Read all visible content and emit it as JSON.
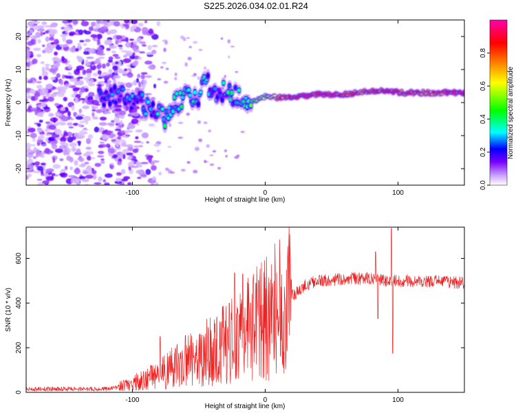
{
  "chart_data": [
    {
      "type": "heatmap",
      "title": "S225.2026.034.02.01.R24",
      "xlabel": "Height of straight line (km)",
      "ylabel": "Frequency (Hz)",
      "xlim": [
        -180,
        150
      ],
      "ylim": [
        -25,
        25
      ],
      "xticks": [
        -100,
        0,
        100
      ],
      "xtick_labels": [
        "-100",
        "0",
        "100"
      ],
      "yticks": [
        -20,
        -10,
        0,
        10,
        20
      ],
      "ytick_labels": [
        "-20",
        "-10",
        "0",
        "10",
        "20"
      ],
      "colorbar": {
        "label": "Normalized spectral amplitude",
        "range": [
          0,
          1
        ],
        "ticks": [
          0.0,
          0.2,
          0.4,
          0.6,
          0.8
        ],
        "tick_labels": [
          "0.0",
          "0.2",
          "0.4",
          "0.6",
          "0.8"
        ],
        "colors": [
          "#ffffff",
          "#c9a0ff",
          "#7a00ff",
          "#0000ff",
          "#00ffff",
          "#00ff00",
          "#ffff00",
          "#ff8000",
          "#ff0000",
          "#ff00aa"
        ]
      },
      "ridge": {
        "x": [
          -120,
          -100,
          -90,
          -80,
          -75,
          -70,
          -60,
          -50,
          -45,
          -40,
          -30,
          -20,
          -10,
          0,
          10,
          20,
          40,
          60,
          80,
          90,
          100,
          120,
          150
        ],
        "freq": [
          2,
          1,
          -1,
          -3,
          -5,
          0,
          2,
          1,
          7,
          4,
          3,
          1.5,
          0,
          2,
          1.5,
          1.5,
          2.5,
          2.5,
          3.5,
          3.5,
          3,
          3,
          3
        ],
        "amplitude": [
          0.25,
          0.3,
          0.35,
          0.35,
          0.4,
          0.35,
          0.4,
          0.35,
          0.35,
          0.3,
          0.35,
          0.45,
          0.5,
          0.55,
          0.75,
          0.85,
          0.9,
          0.85,
          0.8,
          0.9,
          0.85,
          0.8,
          0.9
        ]
      }
    },
    {
      "type": "line",
      "title": "",
      "xlabel": "Height of straight line (km)",
      "ylabel": "SNR (10 * v/v)",
      "xlim": [
        -180,
        150
      ],
      "ylim": [
        0,
        740
      ],
      "xticks": [
        -100,
        0,
        100
      ],
      "xtick_labels": [
        "-100",
        "0",
        "100"
      ],
      "yticks": [
        0,
        200,
        400,
        600
      ],
      "ytick_labels": [
        "0",
        "200",
        "400",
        "600"
      ],
      "color": "#ee2222",
      "trend": {
        "x": [
          -180,
          -120,
          -110,
          -100,
          -90,
          -80,
          -70,
          -60,
          -50,
          -40,
          -30,
          -20,
          -10,
          0,
          10,
          20,
          30,
          40,
          60,
          80,
          90,
          95,
          100,
          120,
          150
        ],
        "y": [
          15,
          15,
          25,
          40,
          60,
          80,
          110,
          140,
          160,
          190,
          220,
          250,
          290,
          330,
          380,
          430,
          480,
          500,
          510,
          510,
          500,
          500,
          500,
          500,
          490
        ]
      },
      "spikes": [
        {
          "x": -79,
          "y": 250
        },
        {
          "x": -60,
          "y": 255
        },
        {
          "x": -27,
          "y": 400
        },
        {
          "x": -23,
          "y": 535
        },
        {
          "x": -17,
          "y": 530
        },
        {
          "x": 83,
          "y": 630
        },
        {
          "x": 85,
          "y": 330
        },
        {
          "x": 95,
          "y": 735
        },
        {
          "x": 96,
          "y": 175
        }
      ]
    }
  ]
}
